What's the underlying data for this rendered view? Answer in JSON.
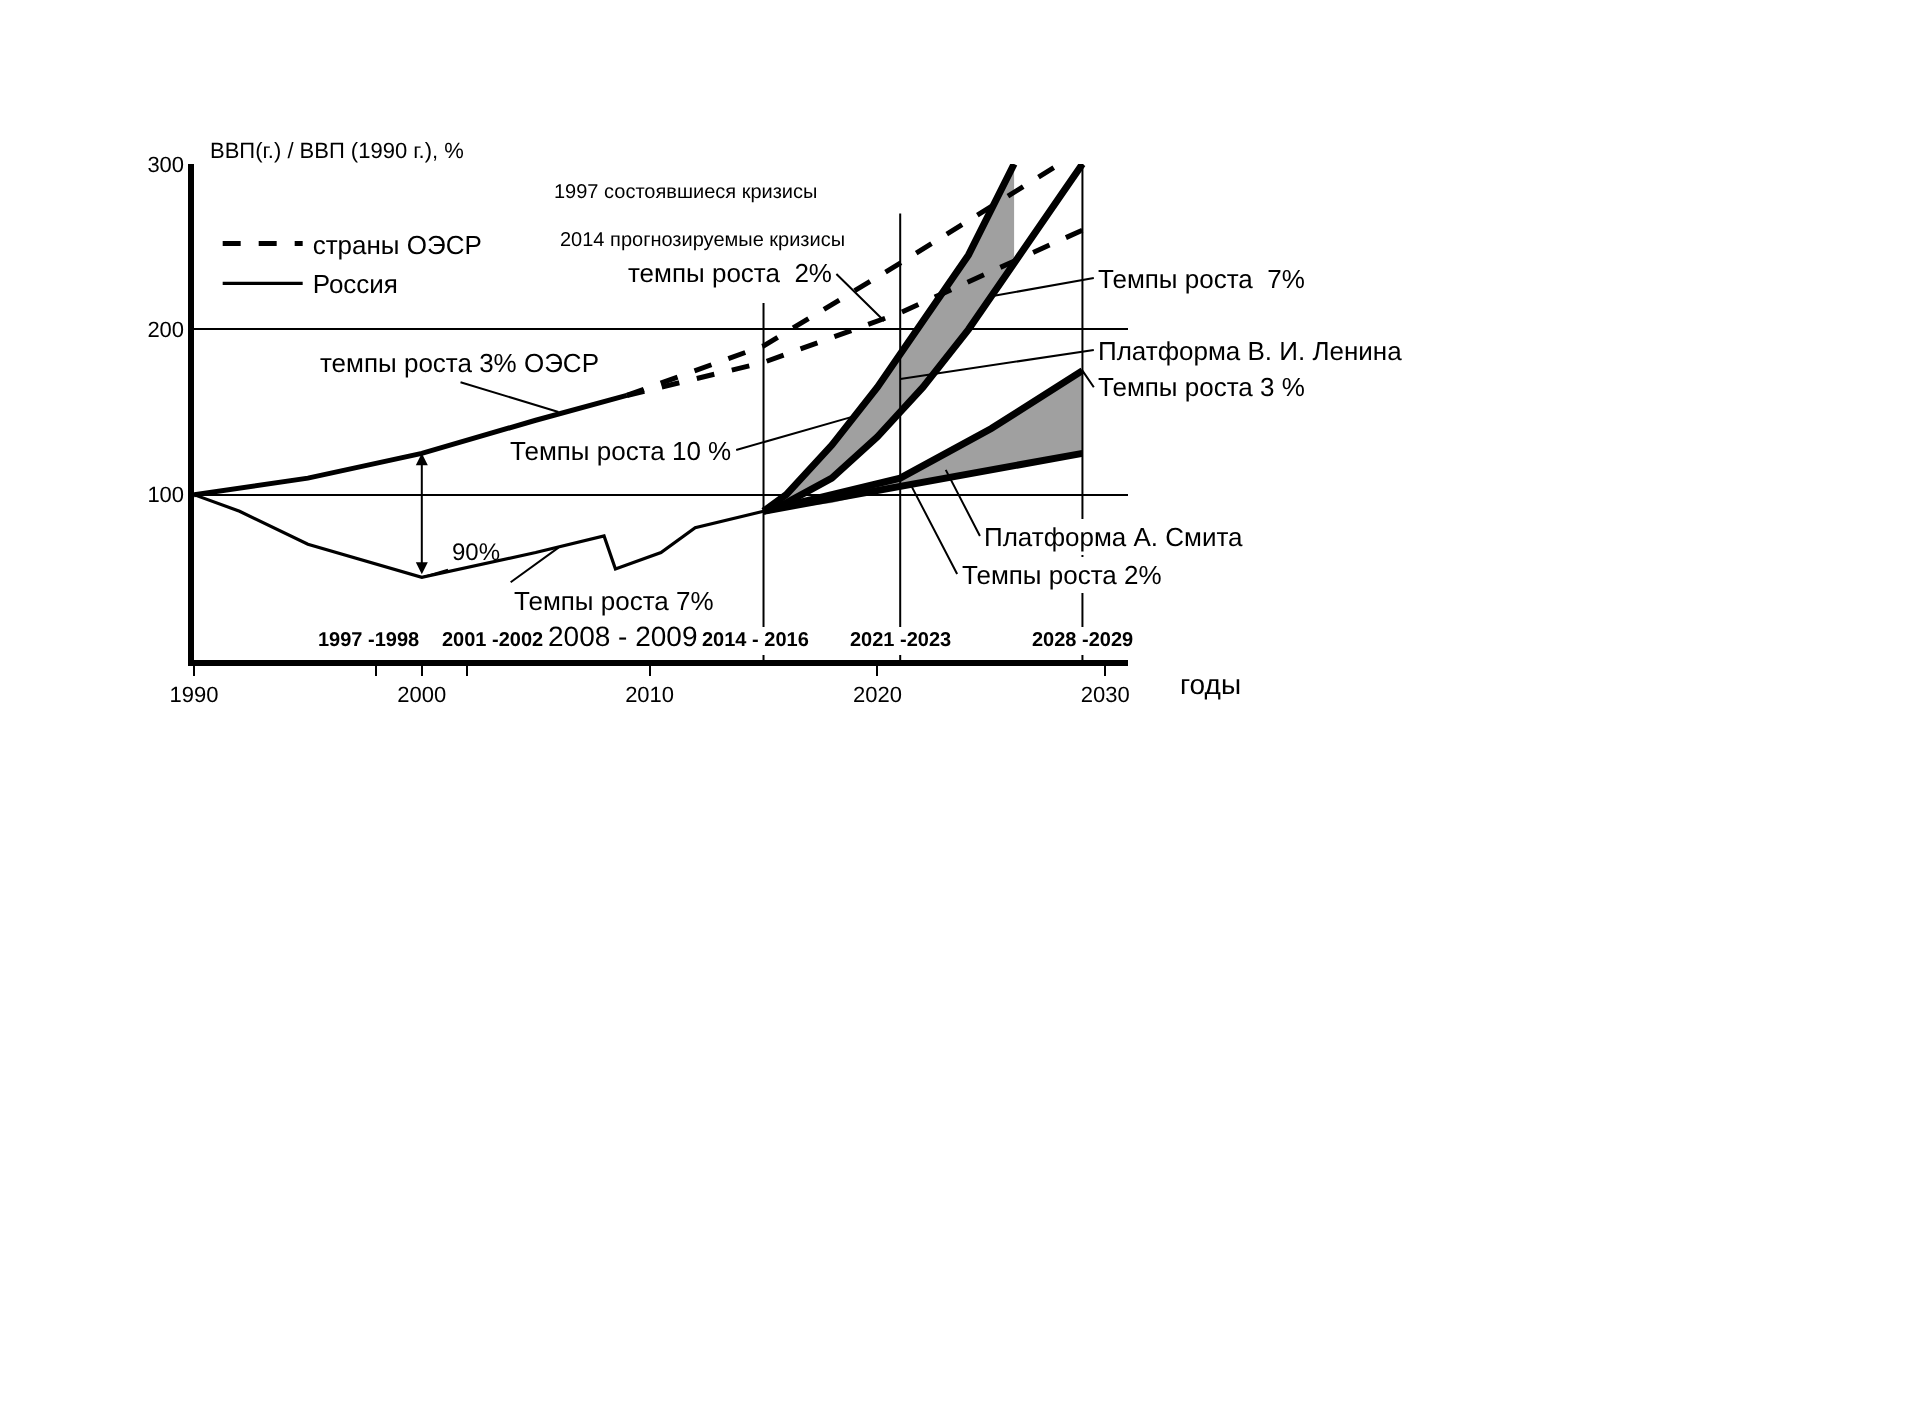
{
  "chart_data": {
    "type": "line",
    "xlabel": "годы",
    "ylabel": "ВВП(г.) / ВВП (1990 г.), %",
    "xlim": [
      1990,
      2031
    ],
    "ylim": [
      0,
      300
    ],
    "xticks": [
      1990,
      {
        "value": 1998,
        "label": null
      },
      2000,
      {
        "value": 2002,
        "label": null
      },
      2010,
      2020,
      2030
    ],
    "yticks": [
      100,
      200,
      300
    ],
    "grid": "y",
    "legend": "top left",
    "series": [
      {
        "color": "#000000",
        "x": [
          1990,
          1995,
          2000,
          2005,
          2009
        ],
        "values": [
          100,
          110,
          125,
          145,
          160
        ]
      },
      {
        "name": "страны ОЭСР",
        "color": "#000000",
        "line_style": "dashed",
        "x": [
          2009,
          2015,
          2021,
          2028
        ],
        "values": [
          160,
          190,
          240,
          300
        ]
      },
      {
        "color": "#000000",
        "line_style": "dashed",
        "x": [
          2009,
          2015,
          2021,
          2029
        ],
        "values": [
          160,
          180,
          210,
          260
        ]
      },
      {
        "name": "Россия",
        "color": "#000000",
        "x": [
          1990,
          1992,
          1995,
          2000,
          2005,
          2008,
          2008.5,
          2010.5,
          2012,
          2015
        ],
        "values": [
          100,
          90,
          70,
          50,
          65,
          75,
          55,
          65,
          80,
          90
        ]
      },
      {
        "color": "#a0a0a0",
        "x": [
          2015,
          2016,
          2018,
          2020,
          2022,
          2024,
          2026
        ],
        "values": [
          null,
          null,
          null,
          null,
          null,
          null,
          null
        ],
        "lower": [
          90,
          95,
          110,
          135,
          165,
          200,
          240
        ],
        "upper": [
          90,
          100,
          130,
          165,
          205,
          245,
          300
        ]
      },
      {
        "color": "#000000",
        "x": [
          2015,
          2016,
          2018,
          2020,
          2022,
          2024,
          2026
        ],
        "values": [
          90,
          100,
          130,
          165,
          205,
          245,
          300
        ]
      },
      {
        "color": "#000000",
        "x": [
          2015,
          2016,
          2018,
          2020,
          2022,
          2024,
          2026,
          2028,
          2029
        ],
        "values": [
          90,
          95,
          110,
          135,
          165,
          200,
          240,
          280,
          300
        ]
      },
      {
        "color": "#a0a0a0",
        "x": [
          2015,
          2018,
          2021,
          2025,
          2029
        ],
        "values": [
          null,
          null,
          null,
          null,
          null
        ],
        "lower": [
          90,
          95,
          105,
          115,
          125
        ],
        "upper": [
          90,
          100,
          110,
          140,
          175
        ]
      },
      {
        "color": "#000000",
        "x": [
          2015,
          2018,
          2021,
          2025,
          2029
        ],
        "values": [
          90,
          100,
          110,
          140,
          175
        ]
      },
      {
        "color": "#000000",
        "x": [
          2015,
          2029
        ],
        "values": [
          90,
          125
        ]
      }
    ],
    "ref_lines": [
      {
        "axis": "x",
        "value": 2015
      },
      {
        "axis": "x",
        "value": 2021
      },
      {
        "axis": "x",
        "value": 2029
      }
    ],
    "annotations": [
      "1997 состоявшиеся кризисы",
      "2014 прогнозируемые кризисы",
      {
        "text": "темпы роста 3% ОЭСР",
        "x": 2006,
        "y": 150
      },
      {
        "text": "темпы роста  2%",
        "x": 2020.3,
        "y": 205
      },
      {
        "text": "Темпы роста  7%",
        "x": 2025,
        "y": 220
      },
      {
        "text": "Платформа В. И. Ленина",
        "x": 2021,
        "y": 170
      },
      {
        "text": "Темпы роста 10 %",
        "x": 2019,
        "y": 147.5
      },
      {
        "text": "Темпы роста 3 %",
        "x": 2029,
        "y": 175
      },
      {
        "text": "Платформа А. Смита",
        "x": 2023,
        "y": 115
      },
      {
        "text": "Темпы роста 2%",
        "x": 2021.5,
        "y": 105
      },
      {
        "text": "Темпы роста 7%",
        "x": 2006,
        "y": 68
      },
      {
        "text": "90%",
        "x": 2000,
        "y": 50
      },
      "1997 -1998",
      "2001 -2002",
      "2008 - 2009",
      "2014 - 2016",
      "2021 -2023",
      "2028 -2029"
    ]
  }
}
